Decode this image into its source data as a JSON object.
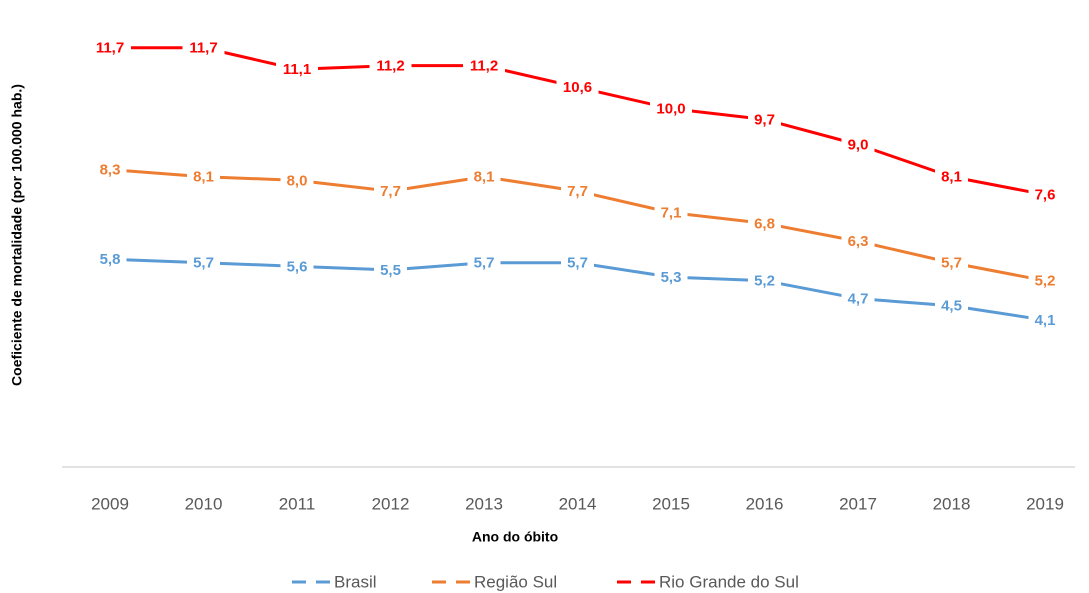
{
  "chart_data": {
    "type": "line",
    "y_label": "Coeficiente de mortalidade  (por 100.000 hab.)",
    "x_label": "Ano do óbito",
    "categories": [
      "2009",
      "2010",
      "2011",
      "2012",
      "2013",
      "2014",
      "2015",
      "2016",
      "2017",
      "2018",
      "2019"
    ],
    "ylim": [
      0,
      12
    ],
    "legend": "bottom",
    "series": [
      {
        "name": "Brasil",
        "color": "#5b9bd5",
        "values": [
          5.8,
          5.7,
          5.6,
          5.5,
          5.7,
          5.7,
          5.3,
          5.2,
          4.7,
          4.5,
          4.1
        ],
        "value_labels": [
          "5,8",
          "5,7",
          "5,6",
          "5,5",
          "5,7",
          "5,7",
          "5,3",
          "5,2",
          "4,7",
          "4,5",
          "4,1"
        ]
      },
      {
        "name": "Região Sul",
        "color": "#ed7d31",
        "values": [
          8.3,
          8.1,
          8.0,
          7.7,
          8.1,
          7.7,
          7.1,
          6.8,
          6.3,
          5.7,
          5.2
        ],
        "value_labels": [
          "8,3",
          "8,1",
          "8,0",
          "7,7",
          "8,1",
          "7,7",
          "7,1",
          "6,8",
          "6,3",
          "5,7",
          "5,2"
        ]
      },
      {
        "name": "Rio Grande do Sul",
        "color": "#ff0000",
        "values": [
          11.7,
          11.7,
          11.1,
          11.2,
          11.2,
          10.6,
          10.0,
          9.7,
          9.0,
          8.1,
          7.6
        ],
        "value_labels": [
          "11,7",
          "11,7",
          "11,1",
          "11,2",
          "11,2",
          "10,6",
          "10,0",
          "9,7",
          "9,0",
          "8,1",
          "7,6"
        ]
      }
    ]
  }
}
